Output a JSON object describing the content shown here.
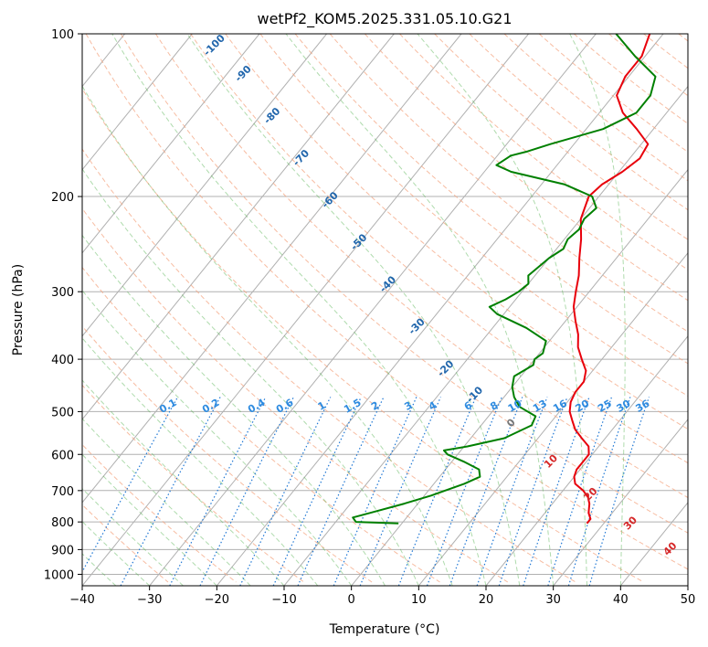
{
  "chart_data": {
    "type": "line",
    "title": "wetPf2_KOM5.2025.331.05.10.G21",
    "xlabel": "Temperature (°C)",
    "ylabel": "Pressure (hPa)",
    "xlim": [
      -40,
      50
    ],
    "ylim": [
      1050,
      100
    ],
    "y_scale": "log",
    "grid": true,
    "xticks": [
      -40,
      -30,
      -20,
      -10,
      0,
      10,
      20,
      30,
      40,
      50
    ],
    "xtick_labels": [
      "−40",
      "−30",
      "−20",
      "−10",
      "0",
      "10",
      "20",
      "30",
      "40",
      "50"
    ],
    "yticks": [
      1000,
      900,
      800,
      700,
      600,
      500,
      400,
      300,
      200,
      100
    ],
    "ytick_labels": [
      "1000",
      "900",
      "800",
      "700",
      "600",
      "500",
      "400",
      "300",
      "200",
      "100"
    ],
    "mixing_ratio_labels": [
      "0.1",
      "0.2",
      "0.4",
      "0.6",
      "1",
      "1.5",
      "2",
      "3",
      "4",
      "6",
      "8",
      "10",
      "13",
      "16",
      "20",
      "25",
      "30",
      "36"
    ],
    "mixing_ratio_values": [
      0.1,
      0.2,
      0.4,
      0.6,
      1,
      1.5,
      2,
      3,
      4,
      6,
      8,
      10,
      13,
      16,
      20,
      25,
      30,
      36
    ],
    "moist_adiabat_labels": [
      "-100",
      "-90",
      "-80",
      "-70",
      "-60",
      "-50",
      "-40",
      "-30",
      "-20",
      "-10",
      "0",
      "10",
      "20",
      "30",
      "40"
    ],
    "moist_adiabat_values": [
      -100,
      -90,
      -80,
      -70,
      -60,
      -50,
      -40,
      -30,
      -20,
      -10,
      0,
      10,
      20,
      30,
      40
    ],
    "series": [
      {
        "color": "#e8000b",
        "pressure": [
          805,
          790,
          770,
          740,
          720,
          700,
          680,
          660,
          640,
          620,
          600,
          580,
          560,
          540,
          520,
          500,
          480,
          460,
          440,
          420,
          400,
          380,
          360,
          340,
          320,
          300,
          280,
          260,
          240,
          220,
          200,
          190,
          180,
          170,
          160,
          150,
          140,
          130,
          120,
          110,
          100
        ],
        "temperature": [
          27.5,
          27.5,
          26.5,
          25.5,
          24.5,
          23.0,
          21.0,
          20.0,
          19.5,
          19.5,
          19.5,
          18.5,
          16.5,
          14.5,
          13.0,
          11.5,
          10.5,
          10.0,
          10.0,
          9.0,
          7.0,
          5.0,
          3.5,
          1.5,
          -0.5,
          -2.0,
          -3.5,
          -5.5,
          -7.5,
          -10.0,
          -11.5,
          -11.0,
          -9.5,
          -8.5,
          -9.0,
          -12.5,
          -16.5,
          -19.5,
          -20.5,
          -20.5,
          -22.0
        ]
      },
      {
        "color": "#008000",
        "pressure": [
          805,
          800,
          785,
          770,
          740,
          715,
          700,
          680,
          660,
          640,
          620,
          600,
          590,
          580,
          560,
          530,
          510,
          490,
          470,
          450,
          430,
          410,
          400,
          390,
          370,
          350,
          330,
          320,
          310,
          300,
          290,
          280,
          270,
          260,
          250,
          240,
          230,
          220,
          210,
          200,
          190,
          180,
          175,
          168,
          165,
          160,
          150,
          140,
          130,
          120,
          110,
          100
        ],
        "temperature": [
          -0.5,
          -7.0,
          -8.0,
          -6.0,
          -2.0,
          1.0,
          2.5,
          4.5,
          6.0,
          5.0,
          2.0,
          -1.5,
          -2.5,
          0.5,
          5.0,
          7.5,
          7.0,
          3.5,
          1.5,
          0.0,
          -1.0,
          0.5,
          0.0,
          0.5,
          -0.5,
          -5.0,
          -11.0,
          -13.0,
          -11.5,
          -10.5,
          -10.0,
          -11.0,
          -10.5,
          -10.0,
          -9.0,
          -9.5,
          -9.0,
          -9.5,
          -9.0,
          -11.0,
          -16.5,
          -26.0,
          -29.0,
          -28.0,
          -26.0,
          -23.5,
          -17.5,
          -14.5,
          -14.5,
          -16.0,
          -21.5,
          -27.0
        ]
      }
    ]
  }
}
